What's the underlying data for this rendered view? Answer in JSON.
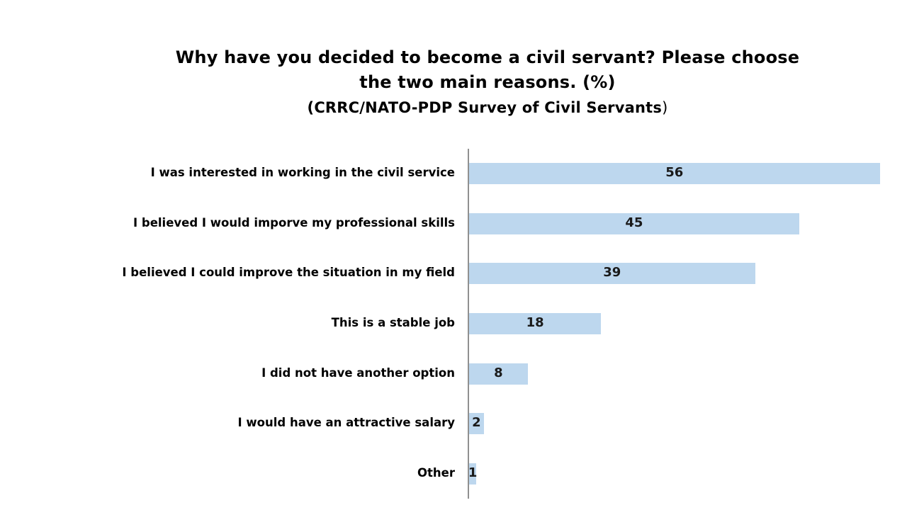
{
  "header": {
    "title_line1": "Why have you decided to become a civil servant? Please choose",
    "title_line2": "the two main reasons. (%)",
    "subtitle_bold": "(CRRC/NATO-PDP Survey of Civil Servants",
    "subtitle_tail": ")"
  },
  "chart_data": {
    "type": "bar",
    "orientation": "horizontal",
    "title": "Why have you decided to become a civil servant? Please choose the two main reasons. (%)",
    "subtitle": "(CRRC/NATO-PDP Survey of Civil Servants)",
    "categories": [
      "I was interested in working in the civil service",
      "I believed I would imporve my professional skills",
      "I believed I could improve the situation in my field",
      "This is a stable job",
      "I did not have another option",
      "I would have an attractive salary",
      "Other"
    ],
    "values": [
      56,
      45,
      39,
      18,
      8,
      2,
      1
    ],
    "data_labels": [
      "56",
      "45",
      "39",
      "18",
      "8",
      "2",
      "1"
    ],
    "xlabel": "",
    "ylabel": "",
    "xlim": [
      0,
      60
    ],
    "grid": false,
    "legend": false,
    "data_label_position": "inside-center",
    "bar_color": "#BDD7EE",
    "axis_color": "#909090",
    "text_color": "#000000"
  }
}
